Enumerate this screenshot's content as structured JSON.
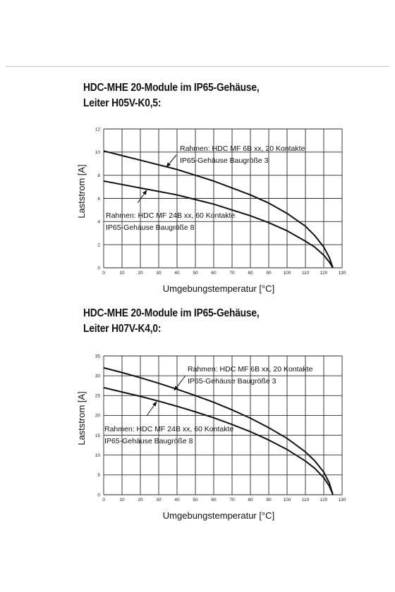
{
  "charts_meta": [
    {
      "heading_line1": "HDC-MHE 20-Module im IP65-Gehäuse,",
      "heading_line2": "Leiter H05V-K0,5:"
    },
    {
      "heading_line1": "HDC-MHE 20-Module im IP65-Gehäuse,",
      "heading_line2": "Leiter H07V-K4,0:"
    }
  ],
  "chart_data": [
    {
      "type": "line",
      "title": "HDC-MHE 20-Module im IP65-Gehäuse, Leiter H05V-K0,5:",
      "xlabel": "Umgebungstemperatur [°C]",
      "ylabel": "Laststrom [A]",
      "xlim": [
        0,
        130
      ],
      "ylim": [
        0,
        12
      ],
      "x_ticks": [
        0,
        10,
        20,
        30,
        40,
        50,
        60,
        70,
        80,
        90,
        100,
        110,
        120,
        130
      ],
      "y_ticks": [
        0,
        2,
        4,
        6,
        8,
        10,
        12
      ],
      "grid": true,
      "series": [
        {
          "name": "Rahmen: HDC MF 6B xx, 20 Kontakte / IP65-Gehäuse Baugröße 3",
          "label_line1": "Rahmen: HDC MF 6B xx, 20 Kontakte",
          "label_line2": "IP65-Gehäuse Baugröße 3",
          "x": [
            0,
            10,
            20,
            30,
            40,
            50,
            60,
            70,
            80,
            90,
            100,
            110,
            115,
            120,
            123,
            125
          ],
          "y": [
            10.1,
            9.7,
            9.3,
            8.9,
            8.5,
            8.0,
            7.5,
            6.9,
            6.3,
            5.6,
            4.7,
            3.6,
            2.8,
            1.8,
            0.9,
            0
          ]
        },
        {
          "name": "Rahmen: HDC MF 24B xx, 60 Kontakte / IP65-Gehäuse Baugröße 8",
          "label_line1": "Rahmen: HDC MF 24B xx, 60 Kontakte",
          "label_line2": "IP65-Gehäuse Baugröße 8",
          "x": [
            0,
            10,
            20,
            30,
            40,
            50,
            60,
            70,
            80,
            90,
            100,
            110,
            115,
            120,
            123,
            125
          ],
          "y": [
            7.5,
            7.2,
            6.9,
            6.6,
            6.3,
            5.9,
            5.5,
            5.0,
            4.5,
            3.9,
            3.2,
            2.3,
            1.8,
            1.1,
            0.5,
            0
          ]
        }
      ]
    },
    {
      "type": "line",
      "title": "HDC-MHE 20-Module im IP65-Gehäuse, Leiter H07V-K4,0:",
      "xlabel": "Umgebungstemperatur [°C]",
      "ylabel": "Laststrom [A]",
      "xlim": [
        0,
        130
      ],
      "ylim": [
        0,
        35
      ],
      "x_ticks": [
        0,
        10,
        20,
        30,
        40,
        50,
        60,
        70,
        80,
        90,
        100,
        110,
        120,
        130
      ],
      "y_ticks": [
        0,
        5,
        10,
        15,
        20,
        25,
        30,
        35
      ],
      "grid": true,
      "series": [
        {
          "name": "Rahmen: HDC MF 6B xx, 20 Kontakte / IP65-Gehäuse Baugröße 3",
          "label_line1": "Rahmen: HDC MF 6B xx, 20 Kontakte",
          "label_line2": "IP65-Gehäuse Baugröße 3",
          "x": [
            0,
            10,
            20,
            30,
            40,
            50,
            60,
            70,
            80,
            90,
            100,
            110,
            115,
            120,
            123,
            125
          ],
          "y": [
            32,
            30.8,
            29.5,
            28.1,
            26.6,
            25.0,
            23.3,
            21.4,
            19.3,
            16.9,
            14.2,
            10.8,
            8.6,
            5.7,
            3.0,
            0
          ]
        },
        {
          "name": "Rahmen: HDC MF 24B xx, 60 Kontakte / IP65-Gehäuse Baugröße 8",
          "label_line1": "Rahmen: HDC MF 24B xx, 60 Kontakte",
          "label_line2": "IP65-Gehäuse Baugröße 8",
          "x": [
            0,
            10,
            20,
            30,
            40,
            50,
            60,
            70,
            80,
            90,
            100,
            110,
            115,
            120,
            123,
            125
          ],
          "y": [
            27,
            25.9,
            24.8,
            23.6,
            22.3,
            20.9,
            19.4,
            17.7,
            15.9,
            13.8,
            11.4,
            8.5,
            6.7,
            4.3,
            2.2,
            0
          ]
        }
      ]
    }
  ]
}
